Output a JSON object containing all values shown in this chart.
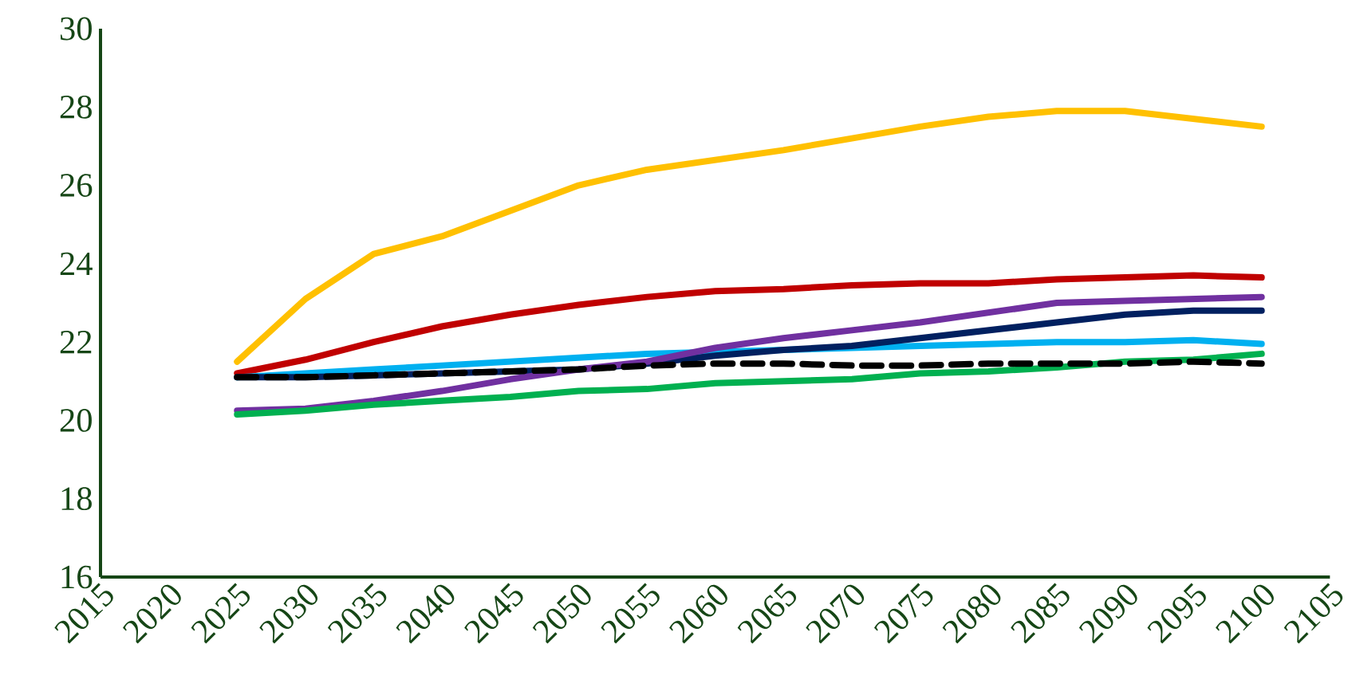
{
  "chart_data": {
    "type": "line",
    "x": [
      2025,
      2030,
      2035,
      2040,
      2045,
      2050,
      2055,
      2060,
      2065,
      2070,
      2075,
      2080,
      2085,
      2090,
      2095,
      2100
    ],
    "series": [
      {
        "color": "#ffc000",
        "values": [
          21.5,
          23.1,
          24.25,
          24.7,
          25.35,
          26.0,
          26.4,
          26.65,
          26.9,
          27.2,
          27.5,
          27.75,
          27.9,
          27.9,
          27.7,
          27.5
        ]
      },
      {
        "color": "#c00000",
        "values": [
          21.2,
          21.55,
          22.0,
          22.4,
          22.7,
          22.95,
          23.15,
          23.3,
          23.35,
          23.45,
          23.5,
          23.5,
          23.6,
          23.65,
          23.7,
          23.65
        ]
      },
      {
        "color": "#00b0f0",
        "values": [
          21.1,
          21.2,
          21.3,
          21.4,
          21.5,
          21.6,
          21.7,
          21.75,
          21.8,
          21.85,
          21.9,
          21.95,
          22.0,
          22.0,
          22.05,
          21.95
        ]
      },
      {
        "color": "#002060",
        "values": [
          21.1,
          21.1,
          21.15,
          21.2,
          21.25,
          21.3,
          21.45,
          21.65,
          21.8,
          21.9,
          22.1,
          22.3,
          22.5,
          22.7,
          22.8,
          22.8
        ]
      },
      {
        "color": "#7030a0",
        "values": [
          20.25,
          20.3,
          20.5,
          20.75,
          21.05,
          21.3,
          21.5,
          21.85,
          22.1,
          22.3,
          22.5,
          22.75,
          23.0,
          23.05,
          23.1,
          23.15
        ]
      },
      {
        "color": "#00b050",
        "values": [
          20.15,
          20.25,
          20.4,
          20.5,
          20.6,
          20.75,
          20.8,
          20.95,
          21.0,
          21.05,
          21.2,
          21.25,
          21.35,
          21.5,
          21.55,
          21.7
        ]
      },
      {
        "color": "#000000",
        "line_style": "dashed",
        "values": [
          21.1,
          21.1,
          21.15,
          21.2,
          21.25,
          21.3,
          21.4,
          21.45,
          21.45,
          21.4,
          21.4,
          21.45,
          21.45,
          21.45,
          21.5,
          21.45
        ]
      }
    ],
    "xlim": [
      2015,
      2105
    ],
    "xticks": [
      2015,
      2020,
      2025,
      2030,
      2035,
      2040,
      2045,
      2050,
      2055,
      2060,
      2065,
      2070,
      2075,
      2080,
      2085,
      2090,
      2095,
      2100,
      2105
    ],
    "ylim": [
      16,
      30
    ],
    "yticks": [
      16,
      18,
      20,
      22,
      24,
      26,
      28,
      30
    ],
    "grid": false,
    "marker": "none",
    "line_style": "solid"
  }
}
